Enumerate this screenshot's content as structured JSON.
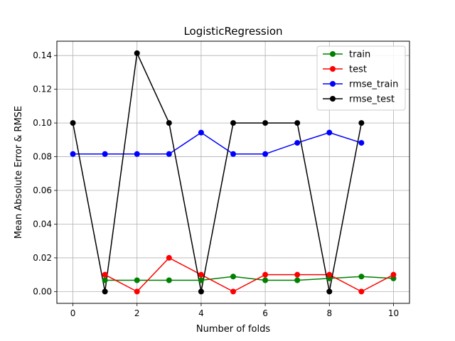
{
  "chart_data": {
    "type": "line",
    "title": "LogisticRegression",
    "xlabel": "Number of folds",
    "ylabel": "Mean Absolute Error & RMSE",
    "xlim": [
      -0.5,
      10.5
    ],
    "ylim": [
      -0.007,
      0.1485
    ],
    "xticks": [
      0,
      2,
      4,
      6,
      8,
      10
    ],
    "yticks": [
      0.0,
      0.02,
      0.04,
      0.06,
      0.08,
      0.1,
      0.12,
      0.14
    ],
    "ytick_labels": [
      "0.00",
      "0.02",
      "0.04",
      "0.06",
      "0.08",
      "0.10",
      "0.12",
      "0.14"
    ],
    "grid": true,
    "legend_position": "top-right",
    "series": [
      {
        "name": "train",
        "color": "#008000",
        "x": [
          1,
          2,
          3,
          4,
          5,
          6,
          7,
          8,
          9,
          10
        ],
        "y": [
          0.0067,
          0.0067,
          0.0067,
          0.0067,
          0.0089,
          0.0067,
          0.0067,
          0.0078,
          0.0089,
          0.0078
        ]
      },
      {
        "name": "test",
        "color": "#ff0000",
        "x": [
          1,
          2,
          3,
          4,
          5,
          6,
          7,
          8,
          9,
          10
        ],
        "y": [
          0.01,
          0.0,
          0.02,
          0.01,
          0.0,
          0.01,
          0.01,
          0.01,
          0.0,
          0.01
        ]
      },
      {
        "name": "rmse_train",
        "color": "#0000ff",
        "x": [
          0,
          1,
          2,
          3,
          4,
          5,
          6,
          7,
          8,
          9
        ],
        "y": [
          0.0816,
          0.0816,
          0.0816,
          0.0816,
          0.0943,
          0.0816,
          0.0816,
          0.0882,
          0.0943,
          0.0882
        ]
      },
      {
        "name": "rmse_test",
        "color": "#000000",
        "x": [
          0,
          1,
          2,
          3,
          4,
          5,
          6,
          7,
          8,
          9
        ],
        "y": [
          0.1,
          0.0,
          0.1414,
          0.1,
          0.0,
          0.1,
          0.1,
          0.1,
          0.0,
          0.1
        ]
      }
    ]
  }
}
